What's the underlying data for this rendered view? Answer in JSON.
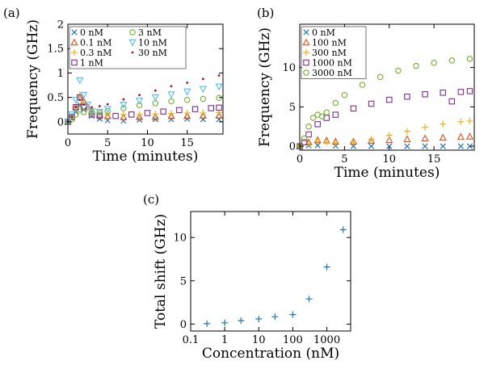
{
  "chart_data": [
    {
      "panel_label": "(a)",
      "type": "scatter",
      "xlabel": "Time (minutes)",
      "ylabel": "Frequency (GHz)",
      "xlim": [
        0,
        19.5
      ],
      "ylim": [
        -0.25,
        2.0
      ],
      "xticks": [
        "0",
        "5",
        "10",
        "15"
      ],
      "yticks": [
        "0",
        "0.5",
        "1",
        "1.5",
        "2"
      ],
      "legend_position": "top-left",
      "series": [
        {
          "name": "0 nM",
          "marker": "x",
          "color": "#1f77b4",
          "points": [
            [
              0,
              0
            ],
            [
              0.5,
              0.08
            ],
            [
              1,
              0.2
            ],
            [
              1.5,
              0.35
            ],
            [
              2,
              0.25
            ],
            [
              3,
              0.12
            ],
            [
              4,
              0.06
            ],
            [
              5,
              0.03
            ],
            [
              7,
              0.02
            ],
            [
              9,
              0.04
            ],
            [
              11,
              0.05
            ],
            [
              13,
              0.05
            ],
            [
              15,
              0.06
            ],
            [
              17,
              0.05
            ],
            [
              19,
              0.05
            ]
          ]
        },
        {
          "name": "0.1 nM",
          "marker": "triangle-up",
          "color": "#d95319",
          "points": [
            [
              0,
              0
            ],
            [
              0.5,
              0.1
            ],
            [
              1,
              0.3
            ],
            [
              1.5,
              0.5
            ],
            [
              2,
              0.42
            ],
            [
              2.5,
              0.3
            ],
            [
              3,
              0.22
            ],
            [
              4,
              0.15
            ],
            [
              5,
              0.12
            ],
            [
              7,
              0.1
            ],
            [
              9,
              0.1
            ],
            [
              11,
              0.1
            ],
            [
              13,
              0.12
            ],
            [
              15,
              0.12
            ],
            [
              17,
              0.13
            ],
            [
              19,
              0.13
            ]
          ]
        },
        {
          "name": "0.3 nM",
          "marker": "plus",
          "color": "#edb120",
          "points": [
            [
              0,
              0
            ],
            [
              0.5,
              0.1
            ],
            [
              1,
              0.3
            ],
            [
              1.5,
              0.55
            ],
            [
              2,
              0.4
            ],
            [
              3,
              0.25
            ],
            [
              4,
              0.18
            ],
            [
              5,
              0.16
            ],
            [
              7,
              0.15
            ],
            [
              9,
              0.15
            ],
            [
              11,
              0.16
            ],
            [
              13,
              0.17
            ],
            [
              15,
              0.18
            ],
            [
              17,
              0.18
            ],
            [
              19,
              0.19
            ]
          ]
        },
        {
          "name": "1 nM",
          "marker": "square",
          "color": "#7e2f8e",
          "points": [
            [
              0,
              0
            ],
            [
              0.5,
              0.1
            ],
            [
              1,
              0.3
            ],
            [
              1.5,
              0.5
            ],
            [
              2,
              0.3
            ],
            [
              3,
              0.15
            ],
            [
              4,
              0.12
            ],
            [
              6,
              0.12
            ],
            [
              8,
              0.15
            ],
            [
              10,
              0.18
            ],
            [
              12,
              0.21
            ],
            [
              14,
              0.24
            ],
            [
              16,
              0.26
            ],
            [
              18,
              0.28
            ],
            [
              19,
              0.29
            ]
          ]
        },
        {
          "name": "3 nM",
          "marker": "circle",
          "color": "#77ac30",
          "points": [
            [
              0,
              0
            ],
            [
              0.5,
              0.05
            ],
            [
              1,
              0.15
            ],
            [
              1.5,
              0.25
            ],
            [
              2,
              0.2
            ],
            [
              3,
              0.18
            ],
            [
              4,
              0.2
            ],
            [
              5,
              0.22
            ],
            [
              7,
              0.28
            ],
            [
              9,
              0.34
            ],
            [
              11,
              0.38
            ],
            [
              13,
              0.42
            ],
            [
              15,
              0.45
            ],
            [
              17,
              0.47
            ],
            [
              19,
              0.49
            ]
          ]
        },
        {
          "name": "10 nM",
          "marker": "triangle-down",
          "color": "#4dbeee",
          "points": [
            [
              0,
              0
            ],
            [
              0.5,
              0.15
            ],
            [
              1,
              0.45
            ],
            [
              1.5,
              0.85
            ],
            [
              2,
              0.55
            ],
            [
              2.5,
              0.35
            ],
            [
              3,
              0.22
            ],
            [
              4,
              0.2
            ],
            [
              5,
              0.26
            ],
            [
              7,
              0.35
            ],
            [
              9,
              0.43
            ],
            [
              11,
              0.5
            ],
            [
              13,
              0.56
            ],
            [
              15,
              0.62
            ],
            [
              17,
              0.67
            ],
            [
              19,
              0.72
            ]
          ]
        },
        {
          "name": "30 nM",
          "marker": "dot",
          "color": "#a2142f",
          "points": [
            [
              0,
              0
            ],
            [
              0.5,
              0.1
            ],
            [
              1,
              0.3
            ],
            [
              1.5,
              0.45
            ],
            [
              2,
              0.35
            ],
            [
              3,
              0.3
            ],
            [
              4,
              0.32
            ],
            [
              5,
              0.36
            ],
            [
              7,
              0.46
            ],
            [
              9,
              0.55
            ],
            [
              11,
              0.64
            ],
            [
              13,
              0.73
            ],
            [
              15,
              0.8
            ],
            [
              17,
              0.88
            ],
            [
              19,
              0.95
            ]
          ]
        }
      ]
    },
    {
      "panel_label": "(b)",
      "type": "scatter",
      "xlabel": "Time (minutes)",
      "ylabel": "Frequency (GHz)",
      "xlim": [
        0,
        19.5
      ],
      "ylim": [
        -0.5,
        15.5
      ],
      "xticks": [
        "0",
        "5",
        "10",
        "15"
      ],
      "yticks": [
        "0",
        "5",
        "10"
      ],
      "legend_position": "top-left",
      "series": [
        {
          "name": "0 nM",
          "marker": "x",
          "color": "#1f77b4",
          "points": [
            [
              0,
              0
            ],
            [
              1,
              0.1
            ],
            [
              2,
              0.1
            ],
            [
              4,
              0.05
            ],
            [
              6,
              0
            ],
            [
              8,
              0
            ],
            [
              10,
              0
            ],
            [
              12,
              0
            ],
            [
              14,
              0
            ],
            [
              16,
              0
            ],
            [
              18,
              0
            ],
            [
              19,
              0
            ]
          ]
        },
        {
          "name": "100 nM",
          "marker": "triangle-up",
          "color": "#d95319",
          "points": [
            [
              0,
              0
            ],
            [
              1,
              0.5
            ],
            [
              2,
              0.8
            ],
            [
              3,
              0.75
            ],
            [
              4,
              0.6
            ],
            [
              6,
              0.6
            ],
            [
              8,
              0.7
            ],
            [
              10,
              0.8
            ],
            [
              12,
              0.9
            ],
            [
              14,
              1.0
            ],
            [
              16,
              1.1
            ],
            [
              18,
              1.2
            ],
            [
              19,
              1.25
            ]
          ]
        },
        {
          "name": "300 nM",
          "marker": "plus",
          "color": "#edb120",
          "points": [
            [
              0,
              0
            ],
            [
              1,
              0.3
            ],
            [
              2,
              0.6
            ],
            [
              3,
              0.5
            ],
            [
              4,
              0.4
            ],
            [
              6,
              0.5
            ],
            [
              8,
              0.9
            ],
            [
              10,
              1.4
            ],
            [
              12,
              1.9
            ],
            [
              14,
              2.4
            ],
            [
              16,
              2.8
            ],
            [
              18,
              3.1
            ],
            [
              19,
              3.2
            ]
          ]
        },
        {
          "name": "1000 nM",
          "marker": "square",
          "color": "#7e2f8e",
          "points": [
            [
              0,
              0
            ],
            [
              0.5,
              0.5
            ],
            [
              1,
              1.5
            ],
            [
              2,
              2.8
            ],
            [
              3,
              3.6
            ],
            [
              4,
              4.0
            ],
            [
              6,
              4.8
            ],
            [
              8,
              5.4
            ],
            [
              10,
              5.9
            ],
            [
              12,
              6.3
            ],
            [
              14,
              6.6
            ],
            [
              16,
              6.8
            ],
            [
              17,
              5.7
            ],
            [
              18,
              6.9
            ],
            [
              19,
              7.0
            ]
          ]
        },
        {
          "name": "3000 nM",
          "marker": "circle",
          "color": "#77ac30",
          "points": [
            [
              0,
              0
            ],
            [
              0.5,
              1
            ],
            [
              1,
              2.5
            ],
            [
              1.5,
              3.6
            ],
            [
              2,
              4.0
            ],
            [
              2.5,
              3.8
            ],
            [
              3,
              4.3
            ],
            [
              4,
              5.5
            ],
            [
              5,
              6.5
            ],
            [
              7,
              7.8
            ],
            [
              9,
              8.8
            ],
            [
              11,
              9.6
            ],
            [
              13,
              10.2
            ],
            [
              15,
              10.6
            ],
            [
              17,
              10.9
            ],
            [
              19,
              11.1
            ]
          ]
        }
      ]
    },
    {
      "panel_label": "(c)",
      "type": "scatter",
      "xlabel": "Concentration (nM)",
      "ylabel": "Total shift (GHz)",
      "xscale": "log",
      "xlim": [
        0.1,
        5000
      ],
      "ylim": [
        -0.8,
        13
      ],
      "xticks": [
        "0.1",
        "1",
        "10",
        "100",
        "1000"
      ],
      "yticks": [
        "0",
        "5",
        "10"
      ],
      "series": [
        {
          "name": "",
          "marker": "plus",
          "color": "#1f77b4",
          "points": [
            [
              0.3,
              0.05
            ],
            [
              1,
              0.15
            ],
            [
              3,
              0.4
            ],
            [
              10,
              0.6
            ],
            [
              30,
              0.85
            ],
            [
              100,
              1.1
            ],
            [
              300,
              2.9
            ],
            [
              1000,
              6.6
            ],
            [
              3000,
              10.9
            ]
          ]
        }
      ]
    }
  ]
}
